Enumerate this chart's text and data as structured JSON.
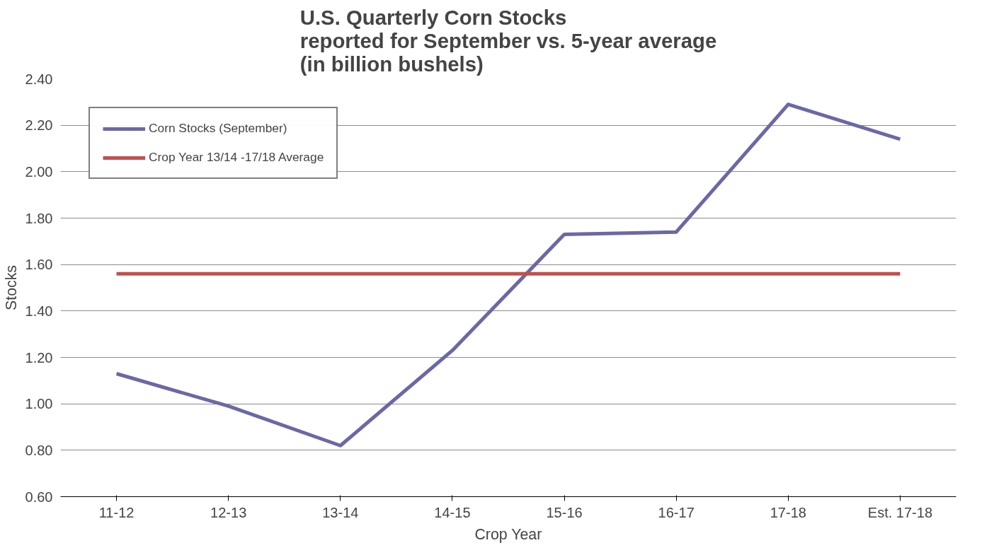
{
  "chart_data": {
    "type": "line",
    "title": "U.S. Quarterly Corn Stocks\nreported for September vs. 5-year average\n(in billion bushels)",
    "xlabel": "Crop Year",
    "ylabel": "Stocks",
    "categories": [
      "11-12",
      "12-13",
      "13-14",
      "14-15",
      "15-16",
      "16-17",
      "17-18",
      "Est. 17-18"
    ],
    "series": [
      {
        "name": "Corn Stocks (September)",
        "color": "#6a68a6",
        "values": [
          1.13,
          0.99,
          0.82,
          1.23,
          1.73,
          1.74,
          2.29,
          2.14
        ]
      },
      {
        "name": "Crop Year 13/14 -17/18 Average",
        "color": "#c0504d",
        "values": [
          1.56,
          1.56,
          1.56,
          1.56,
          1.56,
          1.56,
          1.56,
          1.56
        ]
      }
    ],
    "ylim": [
      0.6,
      2.4
    ],
    "yticks": [
      {
        "value": 0.6,
        "label": "0.60"
      },
      {
        "value": 0.8,
        "label": "0.80"
      },
      {
        "value": 1.0,
        "label": "1.00"
      },
      {
        "value": 1.2,
        "label": "1.20"
      },
      {
        "value": 1.4,
        "label": "1.40"
      },
      {
        "value": 1.6,
        "label": "1.60"
      },
      {
        "value": 1.8,
        "label": "1.80"
      },
      {
        "value": 2.0,
        "label": "2.00"
      },
      {
        "value": 2.2,
        "label": "2.20"
      },
      {
        "value": 2.4,
        "label": "2.40"
      }
    ],
    "grid": "y",
    "legend": "top left",
    "marker": "none",
    "line_style": "solid"
  }
}
